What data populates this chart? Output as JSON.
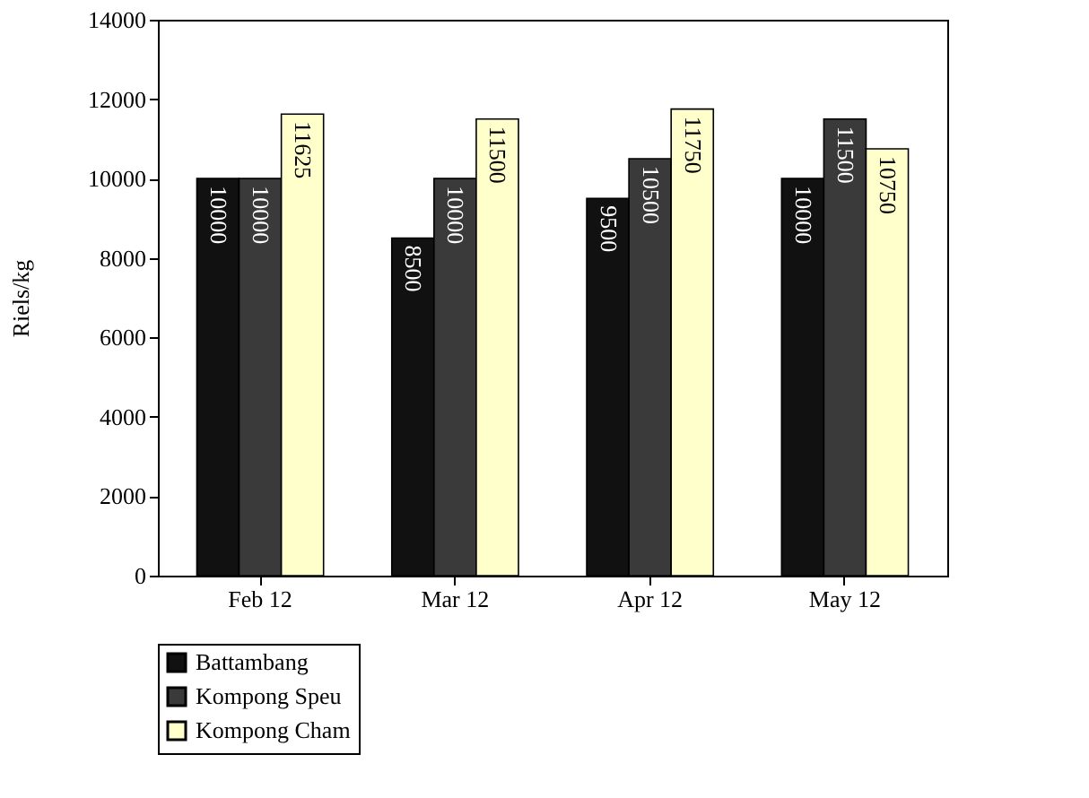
{
  "chart_data": {
    "type": "bar",
    "ylabel": "Riels/kg",
    "categories": [
      "Feb 12",
      "Mar 12",
      "Apr 12",
      "May 12"
    ],
    "series": [
      {
        "name": "Battambang",
        "color": "#111111",
        "values": [
          10000,
          8500,
          9500,
          10000
        ]
      },
      {
        "name": "Kompong Speu",
        "color": "#3a3a3a",
        "values": [
          10000,
          10000,
          10500,
          11500
        ]
      },
      {
        "name": "Kompong Cham",
        "color": "#ffffcc",
        "values": [
          11625,
          11500,
          11750,
          10750
        ]
      }
    ],
    "ylim": [
      0,
      14000
    ],
    "yticks": [
      0,
      2000,
      4000,
      6000,
      8000,
      10000,
      12000,
      14000
    ],
    "grid": false,
    "legend": "bottom",
    "data_labels": true
  }
}
